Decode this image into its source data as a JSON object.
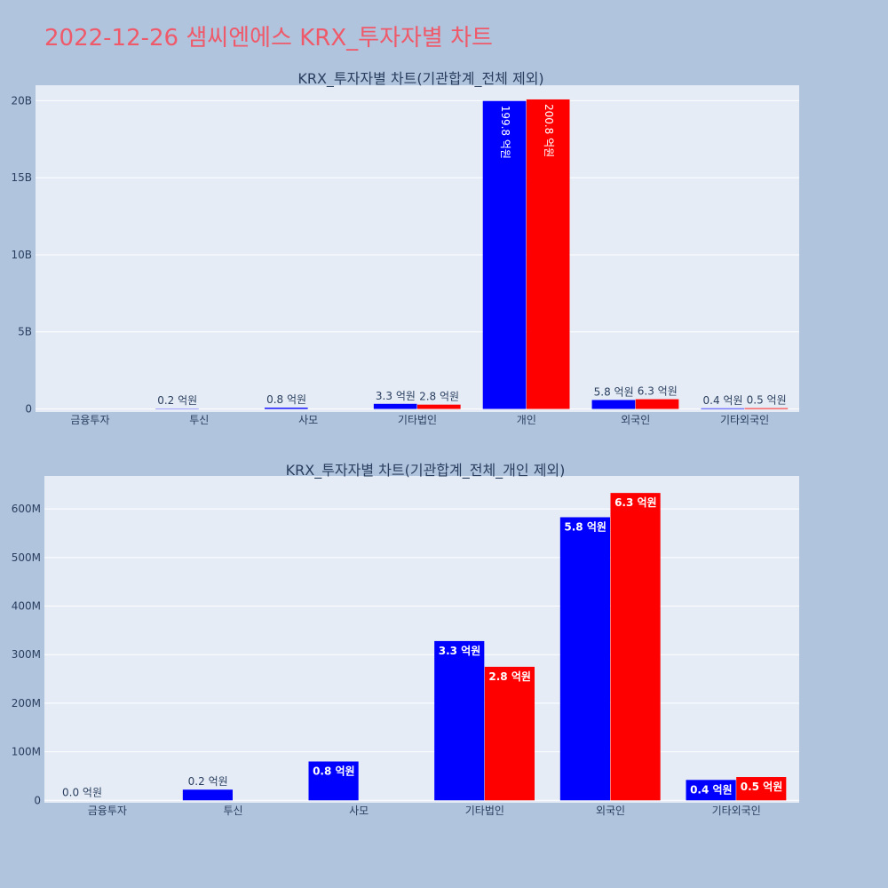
{
  "page": {
    "title": "2022-12-26 샘씨엔에스 KRX_투자자별 차트"
  },
  "colors": {
    "page_bg": "#b0c4de",
    "plot_bg": "#e5ecf6",
    "grid": "#ffffff",
    "text": "#2a3f5f",
    "title_accent": "#ef5a6a",
    "series_blue": "#0000ff",
    "series_red": "#ff0000"
  },
  "chart_data": [
    {
      "type": "bar",
      "title": "KRX_투자자별 차트(기관합계_전체 제외)",
      "categories": [
        "금융투자",
        "투신",
        "사모",
        "기타법인",
        "개인",
        "외국인",
        "기타외국인"
      ],
      "series": [
        {
          "color": "#0000ff",
          "values": [
            0,
            20000000,
            80000000,
            330000000,
            19980000000,
            580000000,
            40000000
          ],
          "labels": [
            "",
            "0.2 억원",
            "0.8 억원",
            "3.3 억원",
            "199.8 억원",
            "5.8 억원",
            "0.4 억원"
          ]
        },
        {
          "color": "#ff0000",
          "values": [
            0,
            0,
            0,
            280000000,
            20080000000,
            630000000,
            50000000
          ],
          "labels": [
            "",
            "",
            "",
            "2.8 억원",
            "200.8 억원",
            "6.3 억원",
            "0.5 억원"
          ]
        }
      ],
      "yticks": [
        0,
        5000000000,
        10000000000,
        15000000000,
        20000000000
      ],
      "ytick_labels": [
        "0",
        "5B",
        "10B",
        "15B",
        "20B"
      ],
      "ylim": [
        -200000000,
        21000000000
      ],
      "grid": true,
      "barmode": "group"
    },
    {
      "type": "bar",
      "title": "KRX_투자자별 차트(기관합계_전체_개인 제외)",
      "categories": [
        "금융투자",
        "투신",
        "사모",
        "기타법인",
        "외국인",
        "기타외국인"
      ],
      "series": [
        {
          "color": "#0000ff",
          "values": [
            0,
            22000000,
            80000000,
            328000000,
            583000000,
            42000000
          ],
          "labels": [
            "0.0 억원",
            "0.2 억원",
            "0.8 억원",
            "3.3 억원",
            "5.8 억원",
            "0.4 억원"
          ]
        },
        {
          "color": "#ff0000",
          "values": [
            0,
            0,
            0,
            275000000,
            633000000,
            48000000
          ],
          "labels": [
            "",
            "",
            "",
            "2.8 억원",
            "6.3 억원",
            "0.5 억원"
          ]
        }
      ],
      "yticks": [
        0,
        100000000,
        200000000,
        300000000,
        400000000,
        500000000,
        600000000
      ],
      "ytick_labels": [
        "0",
        "100M",
        "200M",
        "300M",
        "400M",
        "500M",
        "600M"
      ],
      "ylim": [
        -5000000,
        668000000
      ],
      "grid": true,
      "barmode": "group"
    }
  ]
}
